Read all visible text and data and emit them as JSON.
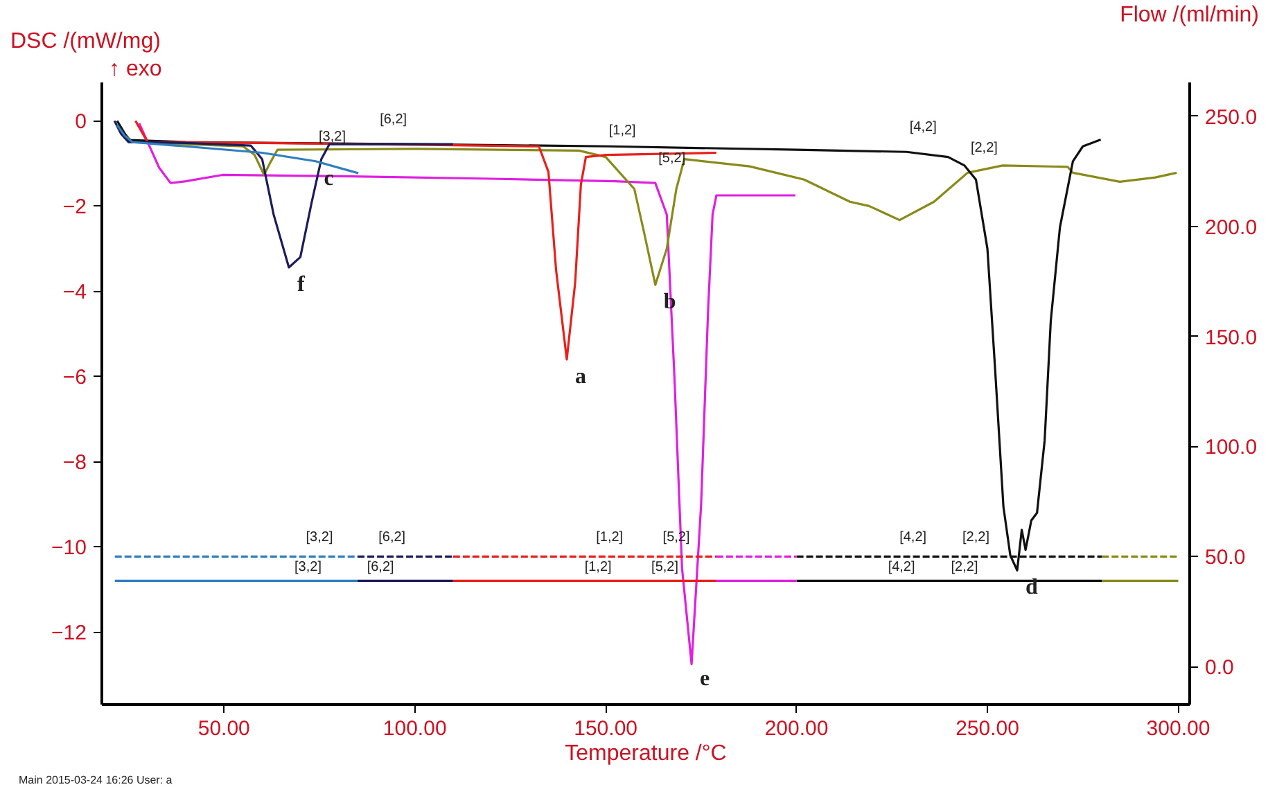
{
  "chart_data": {
    "type": "line",
    "xlabel": "Temperature /°C",
    "ylabel": "DSC /(mW/mg)",
    "y2label": "Flow /(ml/min)",
    "xlim": [
      18,
      303
    ],
    "xticks": [
      {
        "value": 50,
        "label": "50.00"
      },
      {
        "value": 100,
        "label": "100.00"
      },
      {
        "value": 150,
        "label": "150.00"
      },
      {
        "value": 200,
        "label": "200.00"
      },
      {
        "value": 250,
        "label": "250.00"
      },
      {
        "value": 300,
        "label": "300.00"
      }
    ],
    "ylim": [
      -13.7,
      0.9
    ],
    "yticks": [
      0,
      -2,
      -4,
      -6,
      -8,
      -10,
      -12
    ],
    "y2lim": [
      -17.2,
      265.3
    ],
    "y2ticks": [
      {
        "value": 0,
        "label": "0.0"
      },
      {
        "value": 50,
        "label": "50.0"
      },
      {
        "value": 100,
        "label": "100.0"
      },
      {
        "value": 150,
        "label": "150.0"
      },
      {
        "value": 200,
        "label": "200.0"
      },
      {
        "value": 250,
        "label": "250.0"
      }
    ],
    "grid": false,
    "series": [
      {
        "color": "#e020e0",
        "x": [
          27.8,
          30,
          33,
          36,
          40,
          49.6,
          80,
          120,
          152.5,
          163,
          166,
          168,
          170,
          172.5,
          175,
          176.8,
          178,
          179,
          185,
          199.7
        ],
        "values": [
          -0.06,
          -0.5,
          -1.1,
          -1.46,
          -1.42,
          -1.27,
          -1.3,
          -1.36,
          -1.42,
          -1.46,
          -2.2,
          -6,
          -10.5,
          -12.75,
          -9,
          -4.5,
          -2.2,
          -1.75,
          -1.75,
          -1.75
        ]
      },
      {
        "color": "#8a8a1a",
        "x": [
          22,
          26,
          40,
          55,
          58,
          60.5,
          62,
          64,
          100,
          143,
          150,
          157.5,
          160,
          163,
          166,
          168.5,
          170.6,
          187.7,
          202,
          214,
          219,
          227,
          236,
          244.8,
          254,
          271,
          272.4,
          284.7,
          294,
          299.6
        ],
        "values": [
          -0.1,
          -0.5,
          -0.55,
          -0.6,
          -0.8,
          -1.27,
          -1.0,
          -0.68,
          -0.66,
          -0.7,
          -0.85,
          -1.6,
          -2.6,
          -3.85,
          -3.0,
          -1.6,
          -0.9,
          -1.07,
          -1.38,
          -1.9,
          -2.0,
          -2.33,
          -1.9,
          -1.22,
          -1.05,
          -1.08,
          -1.22,
          -1.43,
          -1.33,
          -1.22
        ]
      },
      {
        "color": "#111111",
        "x": [
          22,
          25,
          40,
          100,
          151,
          200,
          228.8,
          239.7,
          244,
          247,
          250,
          252,
          254.2,
          256,
          257.8,
          259,
          260,
          261.5,
          263,
          265,
          266.6,
          269,
          272.4,
          275,
          279.7
        ],
        "values": [
          0,
          -0.45,
          -0.5,
          -0.55,
          -0.6,
          -0.68,
          -0.73,
          -0.85,
          -1.05,
          -1.38,
          -3.0,
          -5.8,
          -9.06,
          -10.2,
          -10.55,
          -9.6,
          -10.07,
          -9.38,
          -9.2,
          -7.5,
          -4.7,
          -2.5,
          -0.95,
          -0.6,
          -0.44
        ]
      },
      {
        "color": "#e8201c",
        "x": [
          26.8,
          30,
          60,
          100,
          132.5,
          135,
          137,
          139.8,
          142,
          143.5,
          144.8,
          150,
          179
        ],
        "values": [
          0,
          -0.5,
          -0.52,
          -0.56,
          -0.6,
          -1.2,
          -3.5,
          -5.6,
          -3.8,
          -1.5,
          -0.85,
          -0.8,
          -0.75
        ]
      },
      {
        "color": "#1c1c5a",
        "x": [
          21.3,
          23,
          25,
          40,
          57,
          60,
          63,
          67,
          70,
          73,
          75.5,
          77.6,
          90,
          110
        ],
        "values": [
          0,
          -0.3,
          -0.5,
          -0.52,
          -0.58,
          -0.9,
          -2.2,
          -3.44,
          -3.2,
          -1.9,
          -0.9,
          -0.55,
          -0.55,
          -0.55
        ]
      },
      {
        "color": "#2f7fc0",
        "x": [
          22,
          24,
          26,
          40,
          60,
          74,
          85.2
        ],
        "values": [
          -0.1,
          -0.35,
          -0.5,
          -0.6,
          -0.75,
          -0.95,
          -1.23
        ]
      },
      {
        "color": "#8a8a1a",
        "axis": "y2",
        "line_style": "dashed",
        "x": [
          280,
          300
        ],
        "values": [
          50,
          50
        ]
      },
      {
        "color": "#8a8a1a",
        "axis": "y2",
        "x": [
          280,
          300
        ],
        "values": [
          39,
          39
        ]
      },
      {
        "color": "#111111",
        "axis": "y2",
        "line_style": "dashed",
        "x": [
          200,
          280
        ],
        "values": [
          50,
          50
        ]
      },
      {
        "color": "#111111",
        "axis": "y2",
        "x": [
          200,
          280
        ],
        "values": [
          39,
          39
        ]
      },
      {
        "color": "#e020e0",
        "axis": "y2",
        "line_style": "dashed",
        "x": [
          179,
          200
        ],
        "values": [
          50,
          50
        ]
      },
      {
        "color": "#e020e0",
        "axis": "y2",
        "x": [
          179,
          200
        ],
        "values": [
          39,
          39
        ]
      },
      {
        "color": "#e8201c",
        "axis": "y2",
        "line_style": "dashed",
        "x": [
          110,
          179
        ],
        "values": [
          50,
          50
        ]
      },
      {
        "color": "#e8201c",
        "axis": "y2",
        "x": [
          110,
          179
        ],
        "values": [
          39,
          39
        ]
      },
      {
        "color": "#1c1c5a",
        "axis": "y2",
        "line_style": "dashed",
        "x": [
          85,
          110
        ],
        "values": [
          50,
          50
        ]
      },
      {
        "color": "#1c1c5a",
        "axis": "y2",
        "x": [
          85,
          110
        ],
        "values": [
          39,
          39
        ]
      },
      {
        "color": "#2f7fc0",
        "axis": "y2",
        "line_style": "dashed",
        "x": [
          21.4,
          85
        ],
        "values": [
          50,
          50
        ]
      },
      {
        "color": "#2f7fc0",
        "axis": "y2",
        "x": [
          21.4,
          85
        ],
        "values": [
          39,
          39
        ]
      }
    ],
    "annotations": [
      "↑ exo",
      "Main   2015-03-24 16:26   User: a",
      {
        "text": "a",
        "x": 139.8,
        "y": -5.6
      },
      {
        "text": "b",
        "x": 163,
        "y": -3.85
      },
      {
        "text": "c",
        "x": 74,
        "y": -0.95
      },
      {
        "text": "d",
        "x": 257.8,
        "y": -10.55
      },
      {
        "text": "e",
        "x": 172.5,
        "y": -12.75
      },
      {
        "text": "f",
        "x": 67,
        "y": -3.44
      },
      {
        "text": "[3,2]",
        "x": 74,
        "y": -0.95
      },
      {
        "text": "[6,2]",
        "x": 90,
        "y": -0.55
      },
      {
        "text": "[1,2]",
        "x": 150,
        "y": -0.8
      },
      {
        "text": "[5,2]",
        "x": 163,
        "y": -1.46
      },
      {
        "text": "[4,2]",
        "x": 228.8,
        "y": -0.73
      },
      {
        "text": "[2,2]",
        "x": 244.8,
        "y": -1.22
      },
      {
        "text": "[3,2]",
        "x": 75,
        "y": -10.227
      },
      {
        "text": "[6,2]",
        "x": 94,
        "y": -10.227
      },
      {
        "text": "[1,2]",
        "x": 151,
        "y": -10.227
      },
      {
        "text": "[5,2]",
        "x": 168.5,
        "y": -10.227
      },
      {
        "text": "[4,2]",
        "x": 230.5,
        "y": -10.227
      },
      {
        "text": "[2,2]",
        "x": 247,
        "y": -10.227
      },
      {
        "text": "[3,2]",
        "x": 72,
        "y": -10.795
      },
      {
        "text": "[6,2]",
        "x": 91,
        "y": -10.795
      },
      {
        "text": "[1,2]",
        "x": 148,
        "y": -10.795
      },
      {
        "text": "[5,2]",
        "x": 165.5,
        "y": -10.795
      },
      {
        "text": "[4,2]",
        "x": 227.5,
        "y": -10.795
      },
      {
        "text": "[2,2]",
        "x": 244,
        "y": -10.795
      }
    ]
  }
}
